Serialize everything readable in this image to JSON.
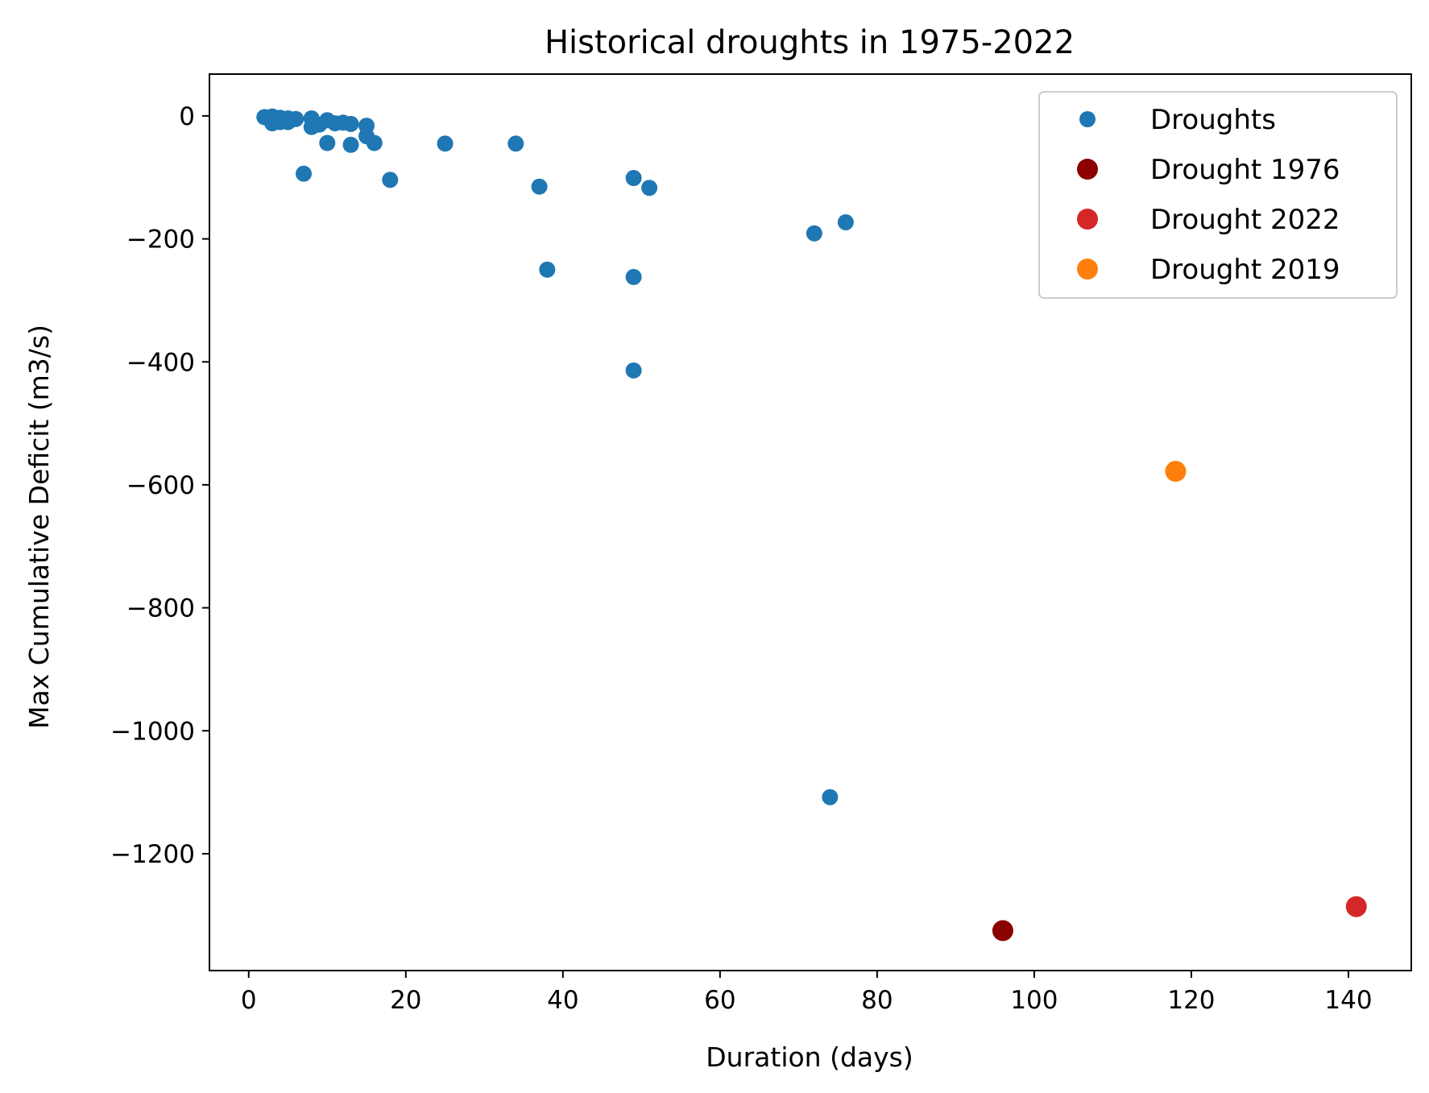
{
  "chart_data": {
    "type": "scatter",
    "title": "Historical droughts in 1975-2022",
    "xlabel": "Duration (days)",
    "ylabel": "Max Cumulative Deficit (m3/s)",
    "xlim": [
      -5,
      148
    ],
    "ylim": [
      -1390,
      68
    ],
    "x_ticks": [
      0,
      20,
      40,
      60,
      80,
      100,
      120,
      140
    ],
    "y_ticks": [
      0,
      -200,
      -400,
      -600,
      -800,
      -1000,
      -1200
    ],
    "y_tick_labels": [
      "0",
      "−200",
      "−400",
      "−600",
      "−800",
      "−1000",
      "−1200"
    ],
    "grid": false,
    "legend_position": "top-right",
    "series": [
      {
        "name": "Droughts",
        "color": "#1f77b4",
        "marker_size": "small",
        "points": [
          {
            "x": 2,
            "y": -2
          },
          {
            "x": 3,
            "y": -1
          },
          {
            "x": 3,
            "y": -12
          },
          {
            "x": 4,
            "y": -3
          },
          {
            "x": 4,
            "y": -10
          },
          {
            "x": 5,
            "y": -4
          },
          {
            "x": 5,
            "y": -10
          },
          {
            "x": 6,
            "y": -5
          },
          {
            "x": 7,
            "y": -94
          },
          {
            "x": 8,
            "y": -4
          },
          {
            "x": 8,
            "y": -18
          },
          {
            "x": 9,
            "y": -14
          },
          {
            "x": 10,
            "y": -7
          },
          {
            "x": 10,
            "y": -44
          },
          {
            "x": 11,
            "y": -12
          },
          {
            "x": 12,
            "y": -11
          },
          {
            "x": 13,
            "y": -13
          },
          {
            "x": 13,
            "y": -47
          },
          {
            "x": 15,
            "y": -16
          },
          {
            "x": 15,
            "y": -33
          },
          {
            "x": 16,
            "y": -44
          },
          {
            "x": 18,
            "y": -104
          },
          {
            "x": 25,
            "y": -45
          },
          {
            "x": 34,
            "y": -45
          },
          {
            "x": 37,
            "y": -115
          },
          {
            "x": 38,
            "y": -250
          },
          {
            "x": 49,
            "y": -101
          },
          {
            "x": 49,
            "y": -262
          },
          {
            "x": 49,
            "y": -414
          },
          {
            "x": 51,
            "y": -117
          },
          {
            "x": 72,
            "y": -191
          },
          {
            "x": 74,
            "y": -1108
          },
          {
            "x": 76,
            "y": -173
          }
        ]
      },
      {
        "name": "Drought 1976",
        "color": "#8b0000",
        "marker_size": "large",
        "points": [
          {
            "x": 96,
            "y": -1325
          }
        ]
      },
      {
        "name": "Drought 2022",
        "color": "#d62728",
        "marker_size": "large",
        "points": [
          {
            "x": 141,
            "y": -1286
          }
        ]
      },
      {
        "name": "Drought 2019",
        "color": "#ff7f0e",
        "marker_size": "large",
        "points": [
          {
            "x": 118,
            "y": -578
          }
        ]
      }
    ]
  }
}
